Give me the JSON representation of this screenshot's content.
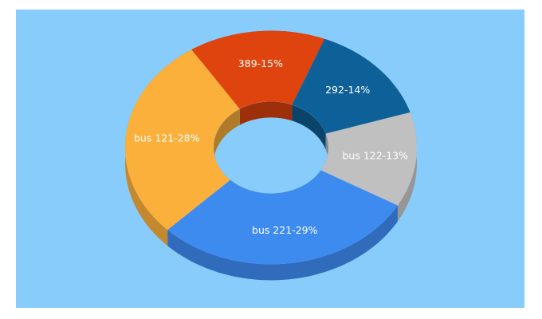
{
  "chart_data": {
    "type": "donut3d",
    "categories": [
      "389-15%",
      "292-14%",
      "bus 122-13%",
      "bus 221-29%",
      "bus 121-28%"
    ],
    "values": [
      15,
      14,
      13,
      29,
      28
    ],
    "colors": [
      "#e0440e",
      "#0e6198",
      "#c0c0c0",
      "#3e8bf0",
      "#fbb03b"
    ]
  }
}
